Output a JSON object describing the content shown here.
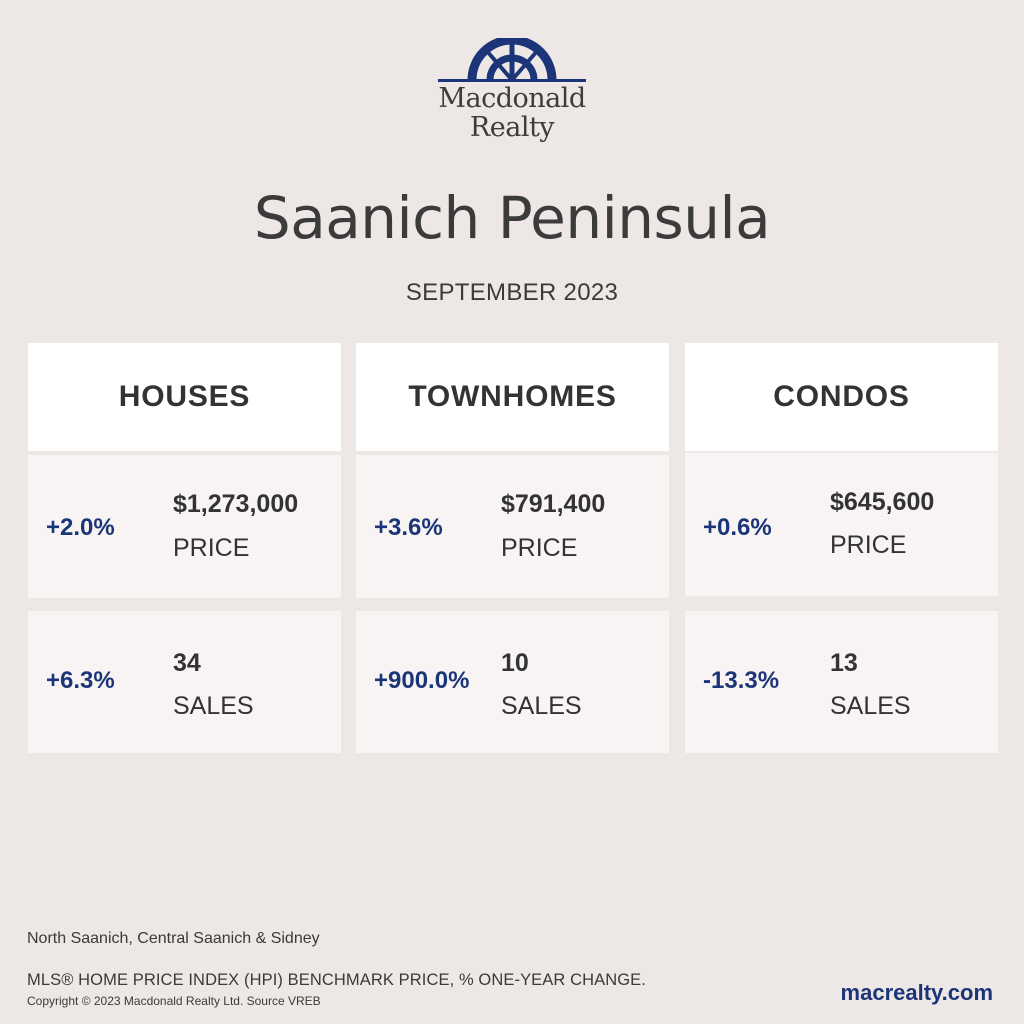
{
  "brand": {
    "logo_line1": "Macdonald",
    "logo_line2": "Realty",
    "accent_color": "#1c3579",
    "logo_icon": "sunrise-emblem-icon"
  },
  "header": {
    "title": "Saanich Peninsula",
    "period": "SEPTEMBER 2023"
  },
  "columns": [
    {
      "heading": "HOUSES",
      "price": {
        "change": "+2.0%",
        "value": "$1,273,000",
        "label": "PRICE"
      },
      "sales": {
        "change": "+6.3%",
        "value": "34",
        "label": "SALES"
      }
    },
    {
      "heading": "TOWNHOMES",
      "price": {
        "change": "+3.6%",
        "value": "$791,400",
        "label": "PRICE"
      },
      "sales": {
        "change": "+900.0%",
        "value": "10",
        "label": "SALES"
      }
    },
    {
      "heading": "CONDOS",
      "price": {
        "change": "+0.6%",
        "value": "$645,600",
        "label": "PRICE"
      },
      "sales": {
        "change": "-13.3%",
        "value": "13",
        "label": "SALES"
      }
    }
  ],
  "footer": {
    "areas": "North Saanich, Central Saanich & Sidney",
    "disclaimer": "MLS® HOME PRICE INDEX (HPI) BENCHMARK PRICE, % ONE-YEAR CHANGE.",
    "copyright": "Copyright © 2023 Macdonald Realty Ltd. Source VREB",
    "website": "macrealty.com"
  }
}
